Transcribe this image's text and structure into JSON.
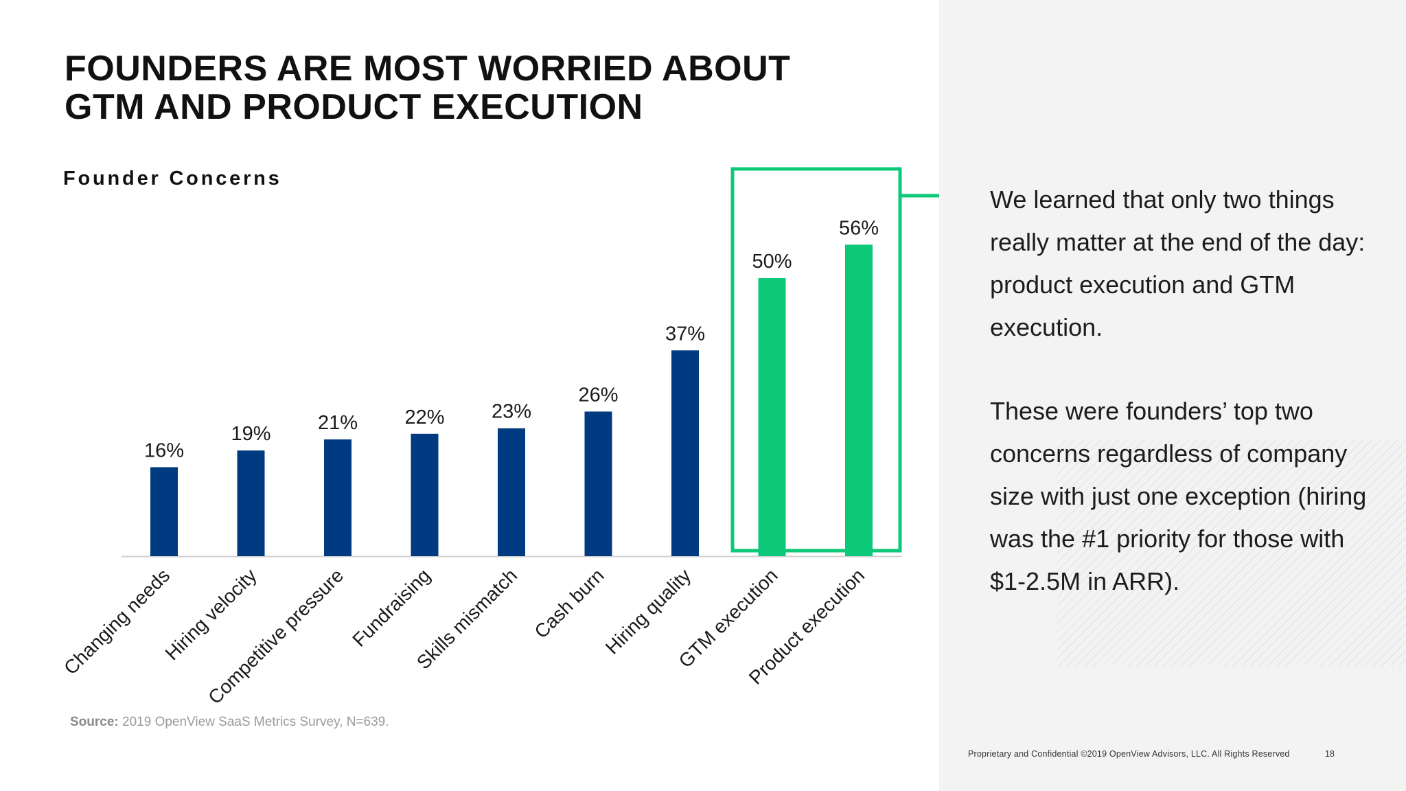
{
  "slide": {
    "title_line1": "FOUNDERS ARE MOST WORRIED ABOUT",
    "title_line2": "GTM AND PRODUCT EXECUTION",
    "body_paragraph_1": "We learned that only two things really matter at the end of the day: product execution and GTM execution.",
    "body_paragraph_2": "These were founders’ top two concerns regardless of company size with just one exception (hiring was the #1 priority for those with $1-2.5M in ARR).",
    "source_label": "Source:",
    "source_text": "2019 OpenView SaaS Metrics Survey, N=639.",
    "footer": "Proprietary and Confidential ©2019 OpenView Advisors, LLC. All Rights Reserved",
    "page_number": "18"
  },
  "colors": {
    "bar_default": "#003a80",
    "bar_highlight": "#0cc97a",
    "highlight_box": "#0cc97a",
    "axis": "#d0d0d0",
    "right_panel_bg": "#f3f3f4"
  },
  "chart_data": {
    "type": "bar",
    "title": "Founder Concerns",
    "xlabel": "",
    "ylabel": "",
    "ylim": [
      0,
      60
    ],
    "grid": false,
    "categories": [
      "Changing needs",
      "Hiring velocity",
      "Competitive pressure",
      "Fundraising",
      "Skills mismatch",
      "Cash burn",
      "Hiring quality",
      "GTM execution",
      "Product execution"
    ],
    "values": [
      16,
      19,
      21,
      22,
      23,
      26,
      37,
      50,
      56
    ],
    "data_labels": [
      "16%",
      "19%",
      "21%",
      "22%",
      "23%",
      "26%",
      "37%",
      "50%",
      "56%"
    ],
    "highlighted": [
      "GTM execution",
      "Product execution"
    ]
  }
}
